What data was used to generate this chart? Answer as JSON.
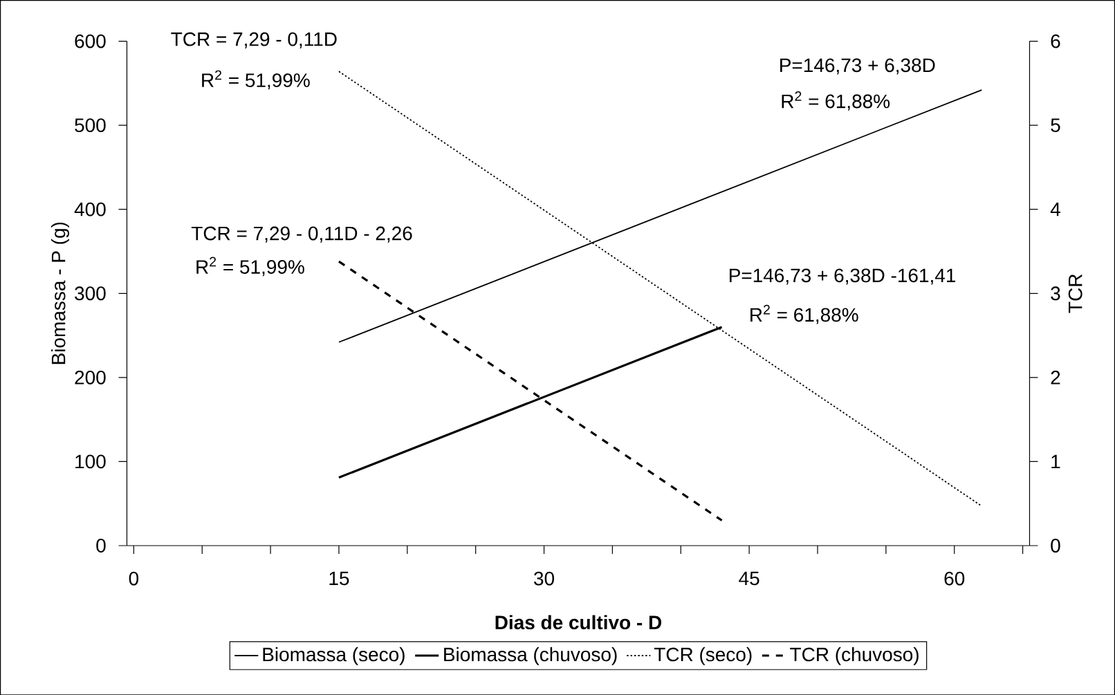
{
  "chart_data": {
    "type": "line",
    "xlabel": "**Dias de cultivo - D**",
    "ylabel": "Biomassa - P (g)",
    "y2label": "TCR",
    "xlim": [
      -0.5,
      65.5
    ],
    "xticks": [
      0,
      {
        "value": 5,
        "label": null
      },
      {
        "value": 10,
        "label": null
      },
      15,
      {
        "value": 20,
        "label": null
      },
      {
        "value": 25,
        "label": null
      },
      30,
      {
        "value": 35,
        "label": null
      },
      {
        "value": 40,
        "label": null
      },
      45,
      {
        "value": 50,
        "label": null
      },
      {
        "value": 55,
        "label": null
      },
      60,
      {
        "value": 65,
        "label": null
      }
    ],
    "ylim": [
      0,
      600
    ],
    "yticks": [
      0,
      100,
      200,
      300,
      400,
      500,
      600
    ],
    "y2lim": [
      0,
      6
    ],
    "y2ticks": [
      0,
      1,
      2,
      3,
      4,
      5,
      6
    ],
    "legend": "bottom",
    "grid": false,
    "marker": "none",
    "series": [
      {
        "name": "Biomassa (seco)",
        "color": "#000000",
        "x": [
          15,
          62
        ],
        "values": [
          242,
          542
        ],
        "line_style": "solid"
      },
      {
        "name": "Biomassa (chuvoso)",
        "color": "#000000",
        "x": [
          15,
          43
        ],
        "values": [
          81,
          260
        ],
        "line_style": "solid"
      },
      {
        "name": "TCR (seco)",
        "color": "#000000",
        "x": [
          15,
          62
        ],
        "values": [
          5.64,
          0.47
        ],
        "line_style": "dotted",
        "axis": "y2"
      },
      {
        "name": "TCR (chuvoso)",
        "color": "#000000",
        "x": [
          15,
          43
        ],
        "values": [
          3.38,
          0.3
        ],
        "line_style": "dashed",
        "axis": "y2"
      }
    ],
    "annotations": [
      "TCR = 7,29 - 0,11D",
      "R$^{2}$ = 51,99%",
      "TCR = 7,29 - 0,11D - 2,26",
      "R$^{2}$ = 51,99%",
      "P=146,73 + 6,38D",
      "R$^{2}$ = 61,88%",
      "P=146,73 + 6,38D -161,41",
      "R$^{2}$ = 61,88%"
    ]
  }
}
